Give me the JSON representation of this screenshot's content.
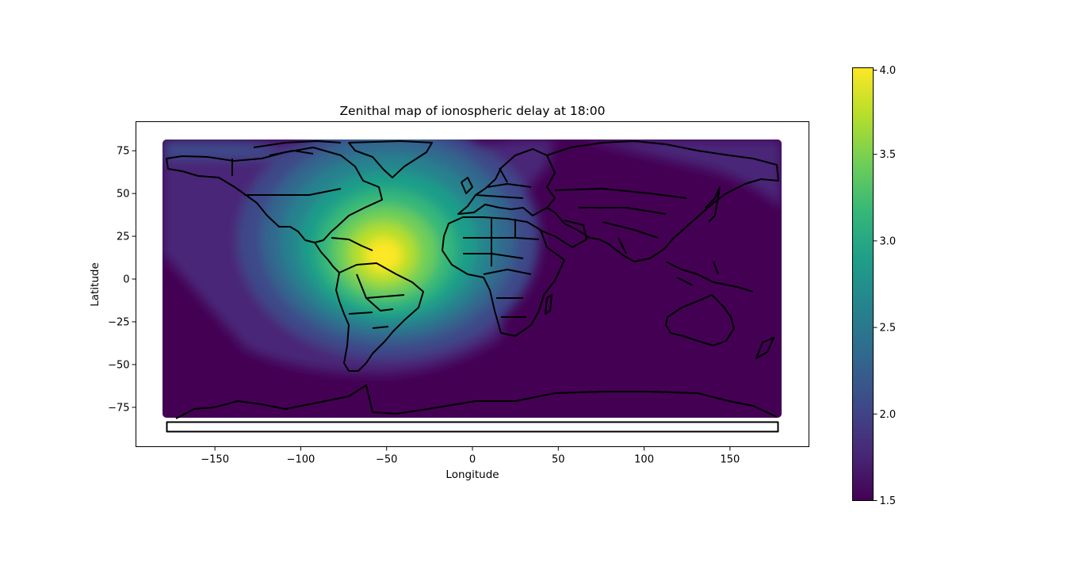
{
  "figure": {
    "title": "Zenithal map of ionospheric delay at 18:00"
  },
  "chart_data": {
    "type": "heatmap",
    "title": "Zenithal map of ionospheric delay at 18:00",
    "xlabel": "Longitude",
    "ylabel": "Latitude",
    "xlim": [
      -196,
      196
    ],
    "ylim": [
      -98,
      92
    ],
    "data_extent": {
      "lon": [
        -180,
        180
      ],
      "lat": [
        -82,
        81
      ]
    },
    "xticks": [
      -150,
      -100,
      -50,
      0,
      50,
      100,
      150
    ],
    "xtick_labels": [
      "−150",
      "−100",
      "−50",
      "0",
      "50",
      "100",
      "150"
    ],
    "yticks": [
      75,
      50,
      25,
      0,
      -25,
      -50,
      -75
    ],
    "ytick_labels": [
      "75",
      "50",
      "25",
      "0",
      "−25",
      "−50",
      "−75"
    ],
    "grid": false,
    "colormap": "viridis",
    "colorbar": {
      "min": 1.5,
      "max": 4.0,
      "ticks": [
        4.0,
        3.5,
        3.0,
        2.5,
        2.0,
        1.5
      ],
      "tick_labels": [
        "4.0",
        "3.5",
        "3.0",
        "2.5",
        "2.0",
        "1.5"
      ]
    },
    "peak": {
      "lon": -50,
      "lat": 12,
      "value": 4.0
    },
    "background_value": 1.5,
    "overlay": "country and coastline borders (black)",
    "colors": {
      "viridis": [
        "#440154",
        "#482878",
        "#3e4a89",
        "#31688e",
        "#26828e",
        "#1f9e89",
        "#35b779",
        "#6ece58",
        "#b5de2b",
        "#fde725"
      ],
      "border": "#000000"
    }
  }
}
